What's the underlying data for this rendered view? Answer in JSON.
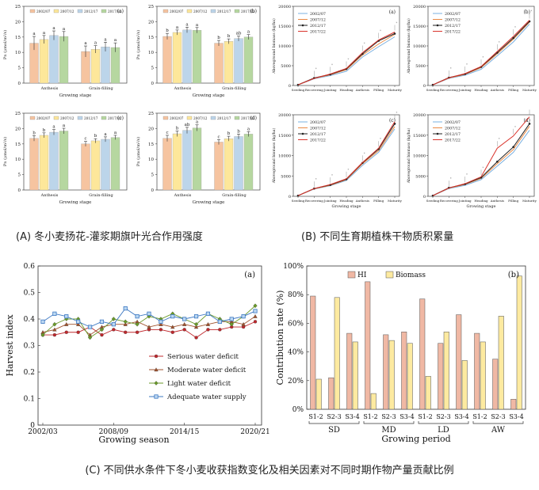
{
  "captions": {
    "A": "(A) 冬小麦扬花-灌浆期旗叶光合作用强度",
    "B": "(B) 不同生育期植株干物质积累量",
    "C": "(C) 不同供水条件下冬小麦收获指数变化及相关因素对不同时期作物产量贡献比例"
  },
  "chart_data": [
    {
      "id": "A-a",
      "type": "bar",
      "panel_label": "(a)",
      "categories": [
        "Anthesis",
        "Grain-filling"
      ],
      "series": [
        {
          "name": "2002/07",
          "values": [
            13.0,
            10.3
          ],
          "err": [
            2.2,
            1.8
          ],
          "letters": [
            "a",
            "a"
          ],
          "color": "#f6c4a0"
        },
        {
          "name": "2007/12",
          "values": [
            14.2,
            11.0
          ],
          "err": [
            1.3,
            1.2
          ],
          "letters": [
            "a",
            "a"
          ],
          "color": "#fde79a"
        },
        {
          "name": "2012/17",
          "values": [
            15.5,
            11.8
          ],
          "err": [
            1.5,
            1.5
          ],
          "letters": [
            "a",
            "a"
          ],
          "color": "#bcd5ea"
        },
        {
          "name": "2017/22",
          "values": [
            15.2,
            11.6
          ],
          "err": [
            1.6,
            1.5
          ],
          "letters": [
            "a",
            "a"
          ],
          "color": "#b6d7a0"
        }
      ],
      "xlabel": "Growing stage",
      "ylabel": "Pn (μmol/m²/s)",
      "ylim": [
        0,
        25
      ],
      "yticks": [
        0,
        5,
        10,
        15,
        20,
        25
      ]
    },
    {
      "id": "A-b",
      "type": "bar",
      "panel_label": "(b)",
      "categories": [
        "Anthesis",
        "Grain-filling"
      ],
      "series": [
        {
          "name": "2002/07",
          "values": [
            15.2,
            13.0
          ],
          "err": [
            1.0,
            0.9
          ],
          "letters": [
            "b",
            "b"
          ],
          "color": "#f6c4a0"
        },
        {
          "name": "2007/12",
          "values": [
            16.5,
            13.6
          ],
          "err": [
            0.8,
            0.8
          ],
          "letters": [
            "a",
            "b"
          ],
          "color": "#fde79a"
        },
        {
          "name": "2012/17",
          "values": [
            17.3,
            14.5
          ],
          "err": [
            0.9,
            0.8
          ],
          "letters": [
            "a",
            "ab"
          ],
          "color": "#bcd5ea"
        },
        {
          "name": "2017/22",
          "values": [
            17.2,
            15.0
          ],
          "err": [
            0.9,
            0.8
          ],
          "letters": [
            "a",
            "a"
          ],
          "color": "#b6d7a0"
        }
      ],
      "xlabel": "Growing stage",
      "ylabel": "Pn (μmol/m²/s)",
      "ylim": [
        0,
        25
      ],
      "yticks": [
        0,
        5,
        10,
        15,
        20,
        25
      ]
    },
    {
      "id": "A-c",
      "type": "bar",
      "panel_label": "(c)",
      "categories": [
        "Anthesis",
        "Grain-filling"
      ],
      "series": [
        {
          "name": "2002/07",
          "values": [
            16.8,
            15.0
          ],
          "err": [
            0.9,
            0.8
          ],
          "letters": [
            "b",
            "c"
          ],
          "color": "#f6c4a0"
        },
        {
          "name": "2007/12",
          "values": [
            17.8,
            16.0
          ],
          "err": [
            0.8,
            0.7
          ],
          "letters": [
            "b",
            "b"
          ],
          "color": "#fde79a"
        },
        {
          "name": "2012/17",
          "values": [
            18.8,
            16.5
          ],
          "err": [
            0.9,
            0.8
          ],
          "letters": [
            "a",
            "a"
          ],
          "color": "#bcd5ea"
        },
        {
          "name": "2017/22",
          "values": [
            19.2,
            17.1
          ],
          "err": [
            0.9,
            0.7
          ],
          "letters": [
            "a",
            "a"
          ],
          "color": "#b6d7a0"
        }
      ],
      "xlabel": "Growing stage",
      "ylabel": "Pn (μmol/m²/s)",
      "ylim": [
        0,
        25
      ],
      "yticks": [
        0,
        5,
        10,
        15,
        20,
        25
      ]
    },
    {
      "id": "A-d",
      "type": "bar",
      "panel_label": "(d)",
      "categories": [
        "Anthesis",
        "Grain-filling"
      ],
      "series": [
        {
          "name": "2002/07",
          "values": [
            16.8,
            15.6
          ],
          "err": [
            1.0,
            0.8
          ],
          "letters": [
            "c",
            "c"
          ],
          "color": "#f6c4a0"
        },
        {
          "name": "2007/12",
          "values": [
            18.3,
            16.7
          ],
          "err": [
            0.9,
            0.8
          ],
          "letters": [
            "b",
            "b"
          ],
          "color": "#fde79a"
        },
        {
          "name": "2012/17",
          "values": [
            19.4,
            17.4
          ],
          "err": [
            1.0,
            0.8
          ],
          "letters": [
            "ab",
            "b"
          ],
          "color": "#bcd5ea"
        },
        {
          "name": "2017/22",
          "values": [
            20.2,
            18.2
          ],
          "err": [
            1.0,
            0.8
          ],
          "letters": [
            "a",
            "a"
          ],
          "color": "#b6d7a0"
        }
      ],
      "xlabel": "Growing stage",
      "ylabel": "Pn (μmol/m²/s)",
      "ylim": [
        0,
        25
      ],
      "yticks": [
        0,
        5,
        10,
        15,
        20,
        25
      ]
    },
    {
      "id": "B-a",
      "type": "line",
      "panel_label": "(a)",
      "categories": [
        "Seeding",
        "Recovering",
        "Jointing",
        "Heading",
        "Anthesis",
        "Filling",
        "Maturity"
      ],
      "series": [
        {
          "name": "2002/07",
          "values": [
            150,
            1700,
            2500,
            3600,
            7200,
            9800,
            12300
          ],
          "color": "#7ab0e0",
          "marker": "none"
        },
        {
          "name": "2007/12",
          "values": [
            160,
            1800,
            2700,
            4000,
            7700,
            10500,
            12900
          ],
          "color": "#e98a45",
          "marker": "none"
        },
        {
          "name": "2012/17",
          "values": [
            170,
            1900,
            2800,
            4200,
            8000,
            11300,
            13100
          ],
          "color": "#222222",
          "marker": "dot"
        },
        {
          "name": "2017/22",
          "values": [
            160,
            1800,
            2900,
            4300,
            8300,
            11500,
            13500
          ],
          "color": "#d9332b",
          "marker": "none"
        }
      ],
      "ylabel": "Aboveground biomass (kg/ha)",
      "ylim": [
        0,
        20000
      ],
      "yticks": [
        0,
        5000,
        10000,
        15000,
        20000
      ]
    },
    {
      "id": "B-b",
      "type": "line",
      "panel_label": "(b)",
      "categories": [
        "Seeding",
        "Recovering",
        "Jointing",
        "Heading",
        "Anthesis",
        "Filling",
        "Maturity"
      ],
      "series": [
        {
          "name": "2002/07",
          "values": [
            150,
            1800,
            2600,
            4100,
            7500,
            11000,
            15500
          ],
          "color": "#7ab0e0",
          "marker": "none"
        },
        {
          "name": "2007/12",
          "values": [
            160,
            1900,
            2800,
            4500,
            8000,
            11700,
            16000
          ],
          "color": "#e98a45",
          "marker": "none"
        },
        {
          "name": "2012/17",
          "values": [
            170,
            2000,
            2900,
            4700,
            8300,
            12000,
            16200
          ],
          "color": "#222222",
          "marker": "dot"
        },
        {
          "name": "2017/22",
          "values": [
            160,
            1950,
            3000,
            4800,
            8600,
            12400,
            16500
          ],
          "color": "#d9332b",
          "marker": "none"
        }
      ],
      "ylabel": "Aboveground biomass (kg/ha)",
      "ylim": [
        0,
        20000
      ],
      "yticks": [
        0,
        5000,
        10000,
        15000,
        20000
      ]
    },
    {
      "id": "B-c",
      "type": "line",
      "panel_label": "(c)",
      "categories": [
        "Seeding",
        "Recovering",
        "Jointing",
        "Heading",
        "Anthesis",
        "Filling",
        "Maturity"
      ],
      "series": [
        {
          "name": "2002/07",
          "values": [
            150,
            1800,
            2600,
            3900,
            7600,
            10800,
            16500
          ],
          "color": "#7ab0e0",
          "marker": "none"
        },
        {
          "name": "2007/12",
          "values": [
            160,
            1850,
            2700,
            4100,
            8000,
            11200,
            17100
          ],
          "color": "#e98a45",
          "marker": "none"
        },
        {
          "name": "2012/17",
          "values": [
            170,
            1900,
            2800,
            4200,
            8200,
            11600,
            17800
          ],
          "color": "#222222",
          "marker": "dot"
        },
        {
          "name": "2017/22",
          "values": [
            160,
            1900,
            2900,
            4300,
            8300,
            11800,
            18300
          ],
          "color": "#d9332b",
          "marker": "none"
        }
      ],
      "xlabel": "Growing stage",
      "ylabel": "Aboveground biomass (kg/ha)",
      "ylim": [
        0,
        20000
      ],
      "yticks": [
        0,
        5000,
        10000,
        15000,
        20000
      ]
    },
    {
      "id": "B-d",
      "type": "line",
      "panel_label": "(d)",
      "categories": [
        "Seeding",
        "Recovering",
        "Jointing",
        "Heading",
        "Anthesis",
        "Filling",
        "Maturity"
      ],
      "series": [
        {
          "name": "2002/07",
          "values": [
            150,
            1900,
            2700,
            4100,
            7400,
            10800,
            16200
          ],
          "color": "#7ab0e0",
          "marker": "none"
        },
        {
          "name": "2007/12",
          "values": [
            160,
            2000,
            2900,
            4400,
            8000,
            11500,
            17200
          ],
          "color": "#e98a45",
          "marker": "none"
        },
        {
          "name": "2012/17",
          "values": [
            170,
            2100,
            3000,
            4600,
            8500,
            12100,
            17800
          ],
          "color": "#222222",
          "marker": "dot"
        },
        {
          "name": "2017/22",
          "values": [
            160,
            2050,
            3100,
            4800,
            11800,
            14800,
            19500
          ],
          "color": "#d9332b",
          "marker": "none"
        }
      ],
      "xlabel": "Growing stage",
      "ylabel": "Aboveground biomass (kg/ha)",
      "ylim": [
        0,
        20000
      ],
      "yticks": [
        0,
        5000,
        10000,
        15000,
        20000
      ]
    },
    {
      "id": "C-a",
      "type": "line",
      "panel_label": "(a)",
      "x": [
        2002,
        2003,
        2004,
        2005,
        2006,
        2007,
        2008,
        2009,
        2010,
        2011,
        2012,
        2013,
        2014,
        2015,
        2016,
        2017,
        2018,
        2019,
        2020
      ],
      "xtick_labels": [
        "2002/03",
        "2008/09",
        "2014/15",
        "2020/21"
      ],
      "xtick_positions": [
        2002,
        2008,
        2014,
        2020
      ],
      "series": [
        {
          "name": "Serious water deficit",
          "values": [
            0.34,
            0.34,
            0.35,
            0.35,
            0.37,
            0.34,
            0.36,
            0.35,
            0.35,
            0.36,
            0.36,
            0.35,
            0.36,
            0.33,
            0.36,
            0.36,
            0.37,
            0.37,
            0.39
          ],
          "color": "#c0282d",
          "marker": "circle"
        },
        {
          "name": "Moderate water deficit",
          "values": [
            0.35,
            0.36,
            0.38,
            0.38,
            0.34,
            0.37,
            0.38,
            0.38,
            0.39,
            0.37,
            0.38,
            0.37,
            0.38,
            0.37,
            0.38,
            0.39,
            0.39,
            0.38,
            0.41
          ],
          "color": "#a0522d",
          "marker": "triangle"
        },
        {
          "name": "Light water deficit",
          "values": [
            0.34,
            0.38,
            0.4,
            0.4,
            0.33,
            0.36,
            0.4,
            0.39,
            0.38,
            0.41,
            0.4,
            0.42,
            0.4,
            0.38,
            0.42,
            0.4,
            0.38,
            0.41,
            0.45
          ],
          "color": "#6a9a2a",
          "marker": "diamond"
        },
        {
          "name": "Adequate water supply",
          "values": [
            0.39,
            0.42,
            0.41,
            0.39,
            0.37,
            0.39,
            0.38,
            0.44,
            0.41,
            0.42,
            0.39,
            0.41,
            0.4,
            0.41,
            0.42,
            0.39,
            0.4,
            0.41,
            0.43
          ],
          "color": "#3d78c2",
          "marker": "square"
        }
      ],
      "xlabel": "Growing season",
      "ylabel": "Harvest index",
      "ylim": [
        0,
        0.6
      ],
      "yticks": [
        0,
        0.1,
        0.2,
        0.3,
        0.4,
        0.5,
        0.6
      ]
    },
    {
      "id": "C-b",
      "type": "bar",
      "panel_label": "(b)",
      "categories": [
        "S1-2",
        "S2-3",
        "S3-4",
        "S1-2",
        "S2-3",
        "S3-4",
        "S1-2",
        "S2-3",
        "S3-4",
        "S1-2",
        "S2-3",
        "S3-4"
      ],
      "groups": [
        "SD",
        "MD",
        "LD",
        "AW"
      ],
      "series": [
        {
          "name": "HI",
          "values": [
            79,
            22,
            53,
            89,
            52,
            54,
            77,
            46,
            66,
            53,
            35,
            7
          ],
          "color": "#f0b8a4"
        },
        {
          "name": "Biomass",
          "values": [
            21,
            78,
            47,
            11,
            48,
            46,
            23,
            54,
            34,
            47,
            65,
            93
          ],
          "color": "#fdeaa0"
        }
      ],
      "xlabel": "Growing period",
      "ylabel": "Contribution rate (%)",
      "ylim": [
        0,
        100
      ],
      "yticks": [
        "0%",
        "20%",
        "40%",
        "60%",
        "80%",
        "100%"
      ]
    }
  ]
}
